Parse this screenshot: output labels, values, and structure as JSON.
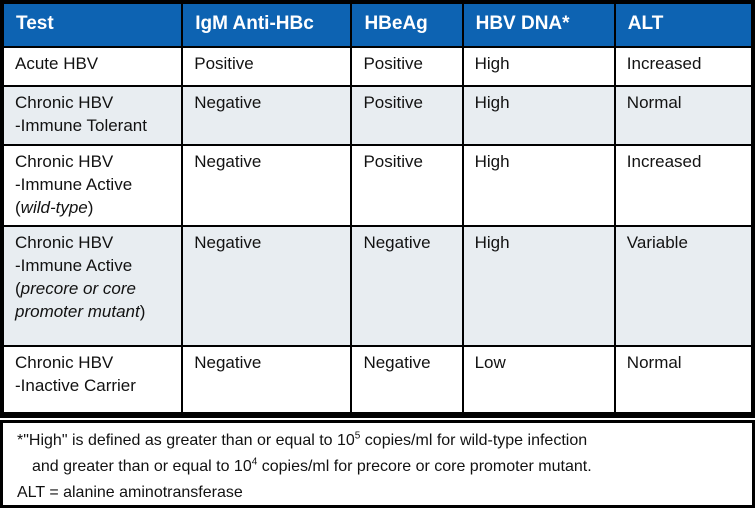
{
  "colors": {
    "header_bg": "#0d63b2",
    "header_text": "#ffffff",
    "row_alt_bg": "#e8edf1",
    "border": "#000000",
    "body_text": "#121212"
  },
  "table": {
    "columns": [
      {
        "label": "Test"
      },
      {
        "label": "IgM Anti-HBc"
      },
      {
        "label": "HBeAg"
      },
      {
        "label": "HBV DNA*"
      },
      {
        "label": "ALT"
      }
    ],
    "rows": [
      {
        "shaded": false,
        "test_lines": [
          [
            {
              "t": "Acute HBV"
            }
          ]
        ],
        "values": [
          "Positive",
          "Positive",
          "High",
          "Increased"
        ]
      },
      {
        "shaded": true,
        "test_lines": [
          [
            {
              "t": "Chronic HBV"
            }
          ],
          [
            {
              "t": "-Immune Tolerant"
            }
          ]
        ],
        "values": [
          "Negative",
          "Positive",
          "High",
          "Normal"
        ]
      },
      {
        "shaded": false,
        "test_lines": [
          [
            {
              "t": "Chronic HBV"
            }
          ],
          [
            {
              "t": "-Immune Active"
            }
          ],
          [
            {
              "t": "("
            },
            {
              "t": "wild-type",
              "i": true
            },
            {
              "t": ")"
            }
          ]
        ],
        "values": [
          "Negative",
          "Positive",
          "High",
          "Increased"
        ]
      },
      {
        "shaded": true,
        "test_lines": [
          [
            {
              "t": "Chronic HBV"
            }
          ],
          [
            {
              "t": "-Immune Active"
            }
          ],
          [
            {
              "t": "("
            },
            {
              "t": "precore or core",
              "i": true
            }
          ],
          [
            {
              "t": "promoter mutant",
              "i": true
            },
            {
              "t": ")"
            }
          ]
        ],
        "values": [
          "Negative",
          "Negative",
          "High",
          "Variable"
        ]
      },
      {
        "shaded": false,
        "test_lines": [
          [
            {
              "t": "Chronic HBV"
            }
          ],
          [
            {
              "t": "-Inactive Carrier"
            }
          ]
        ],
        "values": [
          "Negative",
          "Negative",
          "Low",
          "Normal"
        ]
      }
    ]
  },
  "footnotes": {
    "lines": [
      {
        "indent": false,
        "segments": [
          {
            "t": "*\"High\" is defined as greater than or equal to 10"
          },
          {
            "t": "5",
            "sup": true
          },
          {
            "t": " copies/ml for wild-type infection"
          }
        ]
      },
      {
        "indent": true,
        "segments": [
          {
            "t": "and greater than or equal to 10"
          },
          {
            "t": "4",
            "sup": true
          },
          {
            "t": " copies/ml for precore or core promoter mutant."
          }
        ]
      },
      {
        "indent": false,
        "segments": [
          {
            "t": "ALT = alanine aminotransferase"
          }
        ]
      }
    ]
  }
}
